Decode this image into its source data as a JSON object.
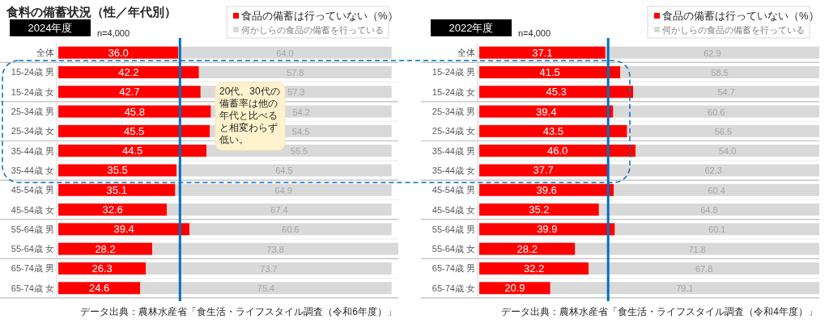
{
  "chart_data": [
    {
      "type": "other",
      "title": "食料の備蓄状況（性／年代別）",
      "annotations": [
        "20代、30代の備蓄率は他の年代と比べると相変わらず低い。"
      ]
    },
    {
      "type": "bar",
      "orientation": "horizontal",
      "stacked": true,
      "title": "2024年度",
      "subtitle": "n=4,000",
      "legend": "top right",
      "xlim": [
        0,
        102
      ],
      "categories": [
        "全体",
        "15-24歳 男",
        "15-24歳 女",
        "25-34歳 男",
        "25-34歳 女",
        "35-44歳 男",
        "35-44歳 女",
        "45-54歳 男",
        "45-54歳 女",
        "55-64歳 男",
        "55-64歳 女",
        "65-74歳 男",
        "65-74歳 女"
      ],
      "series": [
        {
          "name": "食品の備蓄は行っていない（%）",
          "color": "#ff0000",
          "values": [
            36.0,
            42.2,
            42.7,
            45.8,
            45.5,
            44.5,
            35.5,
            35.1,
            32.6,
            39.4,
            28.2,
            26.3,
            24.6
          ],
          "value_labels": [
            "36.0",
            "42.2",
            "42.7",
            "45.8",
            "45.5",
            "44.5",
            "35.5",
            "35.1",
            "32.6",
            "39.4",
            "28.2",
            "26.3",
            "24.6"
          ]
        },
        {
          "name": "何かしらの食品の備蓄を行っている",
          "color": "#d9d9d9",
          "values": [
            64.0,
            57.8,
            57.3,
            54.2,
            54.5,
            55.5,
            64.5,
            64.9,
            67.4,
            60.6,
            73.8,
            73.7,
            75.4
          ],
          "value_labels": [
            "64.0",
            "57.8",
            "57.3",
            "54.2",
            "54.5",
            "55.5",
            "64.5",
            "64.9",
            "67.4",
            "60.6",
            "73.8",
            "73.7",
            "75.4"
          ]
        }
      ],
      "ref_lines": [
        {
          "axis": "x",
          "value": 36.5,
          "color": "#0070c0"
        }
      ],
      "annotations": [
        "データ出典：農林水産省「食生活・ライフスタイル調査（令和6年度）」"
      ]
    },
    {
      "type": "bar",
      "orientation": "horizontal",
      "stacked": true,
      "title": "2022年度",
      "subtitle": "n=4,000",
      "legend": "top right",
      "xlim": [
        0,
        100
      ],
      "categories": [
        "全体",
        "15-24歳 男",
        "15-24歳 女",
        "25-34歳 男",
        "25-34歳 女",
        "35-44歳 男",
        "35-44歳 女",
        "45-54歳 男",
        "45-54歳 女",
        "55-64歳 男",
        "55-64歳 女",
        "65-74歳 男",
        "65-74歳 女"
      ],
      "series": [
        {
          "name": "食品の備蓄は行っていない（%）",
          "color": "#ff0000",
          "values": [
            37.1,
            41.5,
            45.3,
            39.4,
            43.5,
            46.0,
            37.7,
            39.6,
            35.2,
            39.9,
            28.2,
            32.2,
            20.9
          ],
          "value_labels": [
            "37.1",
            "41.5",
            "45.3",
            "39.4",
            "43.5",
            "46.0",
            "37.7",
            "39.6",
            "35.2",
            "39.9",
            "28.2",
            "32.2",
            "20.9"
          ]
        },
        {
          "name": "何かしらの食品の備蓄を行っている",
          "color": "#d9d9d9",
          "values": [
            62.9,
            58.5,
            54.7,
            60.6,
            56.5,
            54.0,
            62.3,
            60.4,
            64.8,
            60.1,
            71.8,
            67.8,
            79.1
          ],
          "value_labels": [
            "62.9",
            "58.5",
            "54.7",
            "60.6",
            "56.5",
            "54.0",
            "62.3",
            "60.4",
            "64.8",
            "60.1",
            "71.8",
            "67.8",
            "79.1"
          ]
        }
      ],
      "ref_lines": [
        {
          "axis": "x",
          "value": 37.9,
          "color": "#0070c0"
        }
      ],
      "annotations": [
        "データ出典：農林水産省「食生活・ライフスタイル調査（令和4年度）」"
      ]
    }
  ]
}
